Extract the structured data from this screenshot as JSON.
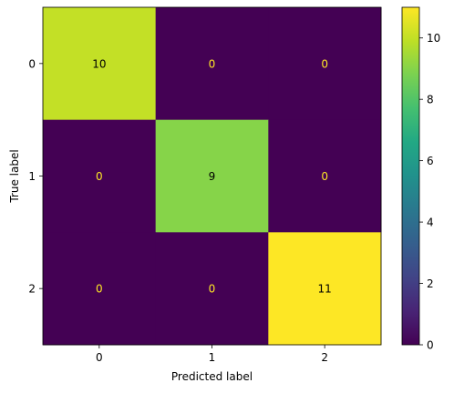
{
  "chart_data": {
    "type": "heatmap",
    "xlabel": "Predicted label",
    "ylabel": "True label",
    "x_categories": [
      "0",
      "1",
      "2"
    ],
    "y_categories": [
      "0",
      "1",
      "2"
    ],
    "values": [
      [
        10,
        0,
        0
      ],
      [
        0,
        9,
        0
      ],
      [
        0,
        0,
        11
      ]
    ],
    "colorscale": "viridis",
    "colorbar": {
      "range": [
        0,
        11
      ],
      "ticks": [
        "0",
        "2",
        "4",
        "6",
        "8",
        "10"
      ]
    },
    "annotation_colors": {
      "on_dark": "#fde725",
      "on_light": "#000000"
    }
  }
}
